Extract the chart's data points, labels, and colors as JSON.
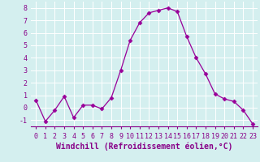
{
  "x": [
    0,
    1,
    2,
    3,
    4,
    5,
    6,
    7,
    8,
    9,
    10,
    11,
    12,
    13,
    14,
    15,
    16,
    17,
    18,
    19,
    20,
    21,
    22,
    23
  ],
  "y": [
    0.6,
    -1.1,
    -0.2,
    0.9,
    -0.8,
    0.2,
    0.2,
    -0.1,
    0.8,
    3.0,
    5.4,
    6.8,
    7.6,
    7.8,
    8.0,
    7.7,
    5.7,
    4.0,
    2.7,
    1.1,
    0.7,
    0.5,
    -0.2,
    -1.3
  ],
  "line_color": "#990099",
  "marker": "D",
  "marker_size": 2.5,
  "bg_color": "#d4efef",
  "grid_color": "#b8dada",
  "xlabel": "Windchill (Refroidissement éolien,°C)",
  "xlabel_color": "#880088",
  "xlim": [
    -0.5,
    23.5
  ],
  "ylim": [
    -1.5,
    8.5
  ],
  "yticks": [
    -1,
    0,
    1,
    2,
    3,
    4,
    5,
    6,
    7,
    8
  ],
  "xticks": [
    0,
    1,
    2,
    3,
    4,
    5,
    6,
    7,
    8,
    9,
    10,
    11,
    12,
    13,
    14,
    15,
    16,
    17,
    18,
    19,
    20,
    21,
    22,
    23
  ],
  "tick_label_fontsize": 6,
  "xlabel_fontsize": 7,
  "tick_color": "#880088",
  "spine_color": "#880088"
}
